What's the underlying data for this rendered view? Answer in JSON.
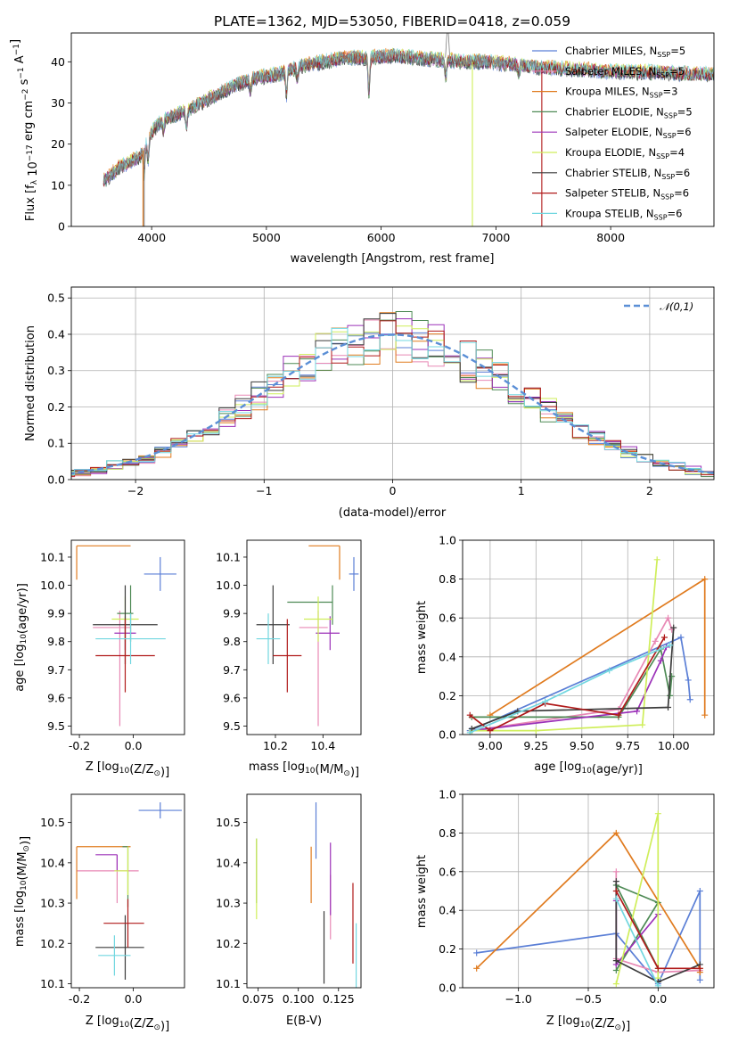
{
  "title": "PLATE=1362, MJD=53050, FIBERID=0418, z=0.059",
  "series": [
    {
      "name": "Chabrier MILES",
      "nssp": "5",
      "color": "#5b7fd6"
    },
    {
      "name": "Salpeter MILES",
      "nssp": "5",
      "color": "#e889b5"
    },
    {
      "name": "Kroupa MILES",
      "nssp": "3",
      "color": "#e07b1f"
    },
    {
      "name": "Chabrier ELODIE",
      "nssp": "5",
      "color": "#4e8a55"
    },
    {
      "name": "Salpeter ELODIE",
      "nssp": "6",
      "color": "#9b30b8"
    },
    {
      "name": "Kroupa ELODIE",
      "nssp": "4",
      "color": "#cfee5a"
    },
    {
      "name": "Chabrier STELIB",
      "nssp": "6",
      "color": "#3b3b3b"
    },
    {
      "name": "Salpeter STELIB",
      "nssp": "6",
      "color": "#b01a1a"
    },
    {
      "name": "Kroupa STELIB",
      "nssp": "6",
      "color": "#72d7e0"
    }
  ],
  "chart_data": [
    {
      "id": "spectrum",
      "type": "line",
      "xlabel": "wavelength [Angstrom, rest frame]",
      "ylabel": "Flux [f_λ 10^-17 erg cm^-2 s^-1 A^-1]",
      "xlim": [
        3300,
        8900
      ],
      "ylim": [
        0,
        47
      ],
      "xticks": [
        4000,
        5000,
        6000,
        7000,
        8000
      ],
      "yticks": [
        0,
        10,
        20,
        30,
        40
      ],
      "legend": "upper-right",
      "continuum": [
        [
          3580,
          11
        ],
        [
          3700,
          14
        ],
        [
          3900,
          17
        ],
        [
          4000,
          23
        ],
        [
          4100,
          26
        ],
        [
          4300,
          28
        ],
        [
          4500,
          31
        ],
        [
          4700,
          34
        ],
        [
          4900,
          36
        ],
        [
          5100,
          37
        ],
        [
          5300,
          39
        ],
        [
          5500,
          40
        ],
        [
          5700,
          41
        ],
        [
          5900,
          41
        ],
        [
          6100,
          41.5
        ],
        [
          6300,
          41
        ],
        [
          6500,
          40.5
        ],
        [
          6700,
          40
        ],
        [
          6900,
          40
        ],
        [
          7100,
          39.5
        ],
        [
          7300,
          39
        ],
        [
          7400,
          38.5
        ]
      ],
      "models_xrange": [
        3580,
        8900
      ],
      "data_xrange": [
        3580,
        7400
      ],
      "models_continue_to": [
        [
          7500,
          38.5
        ],
        [
          7800,
          38
        ],
        [
          8100,
          37.5
        ],
        [
          8400,
          37.5
        ],
        [
          8700,
          37
        ],
        [
          8900,
          37
        ]
      ]
    },
    {
      "id": "residuals",
      "type": "histogram",
      "xlabel": "(data-model)/error",
      "ylabel": "Normed distribution",
      "xlim": [
        -2.5,
        2.5
      ],
      "ylim": [
        0,
        0.53
      ],
      "xticks": [
        -2,
        -1,
        0,
        1,
        2
      ],
      "yticks": [
        0.0,
        0.1,
        0.2,
        0.3,
        0.4,
        0.5
      ],
      "reference_curve": "𝒩(0,1)",
      "legend": "upper-right",
      "grid": true
    },
    {
      "id": "age-vs-Z",
      "type": "errorbar",
      "xlabel": "Z [log10(Z/Z⊙)]",
      "ylabel": "age  [log10(age/yr)]",
      "xlim": [
        -0.23,
        0.19
      ],
      "ylim": [
        9.47,
        10.16
      ],
      "xticks": [
        -0.2,
        0.0
      ],
      "yticks": [
        9.5,
        9.6,
        9.7,
        9.8,
        9.9,
        10.0,
        10.1
      ],
      "points": [
        {
          "x": 0.1,
          "y": 10.04,
          "xerr": [
            0.06,
            0.06
          ],
          "yerr": [
            0.06,
            0.06
          ]
        },
        {
          "x": -0.05,
          "y": 9.85,
          "xerr": [
            0.1,
            0.04
          ],
          "yerr": [
            0.35,
            0.06
          ]
        },
        {
          "x": -0.21,
          "y": 10.14,
          "xerr": [
            0.0,
            0.2
          ],
          "yerr": [
            0.12,
            0.0
          ]
        },
        {
          "x": -0.01,
          "y": 9.9,
          "xerr": [
            0.05,
            0.01
          ],
          "yerr": [
            0.1,
            0.1
          ]
        },
        {
          "x": -0.03,
          "y": 9.83,
          "xerr": [
            0.04,
            0.04
          ],
          "yerr": [
            0.06,
            0.06
          ]
        },
        {
          "x": -0.03,
          "y": 9.88,
          "xerr": [
            0.05,
            0.05
          ],
          "yerr": [
            0.08,
            0.08
          ]
        },
        {
          "x": -0.03,
          "y": 9.86,
          "xerr": [
            0.12,
            0.12
          ],
          "yerr": [
            0.14,
            0.14
          ]
        },
        {
          "x": -0.03,
          "y": 9.75,
          "xerr": [
            0.11,
            0.11
          ],
          "yerr": [
            0.13,
            0.13
          ]
        },
        {
          "x": -0.01,
          "y": 9.81,
          "xerr": [
            0.13,
            0.13
          ],
          "yerr": [
            0.09,
            0.09
          ]
        }
      ]
    },
    {
      "id": "age-vs-mass",
      "type": "errorbar",
      "xlabel": "mass [log10(M/M⊙)]",
      "ylabel": "",
      "xlim": [
        10.08,
        10.56
      ],
      "ylim": [
        9.47,
        10.16
      ],
      "xticks": [
        10.2,
        10.4
      ],
      "yticks": [
        9.5,
        9.6,
        9.7,
        9.8,
        9.9,
        10.0,
        10.1
      ],
      "points": [
        {
          "x": 10.53,
          "y": 10.04,
          "xerr": [
            0.02,
            0.02
          ],
          "yerr": [
            0.06,
            0.06
          ]
        },
        {
          "x": 10.38,
          "y": 9.85,
          "xerr": [
            0.08,
            0.04
          ],
          "yerr": [
            0.35,
            0.06
          ]
        },
        {
          "x": 10.47,
          "y": 10.14,
          "xerr": [
            0.13,
            0.0
          ],
          "yerr": [
            0.12,
            0.0
          ]
        },
        {
          "x": 10.44,
          "y": 9.94,
          "xerr": [
            0.19,
            0.0
          ],
          "yerr": [
            0.08,
            0.06
          ]
        },
        {
          "x": 10.43,
          "y": 9.83,
          "xerr": [
            0.06,
            0.04
          ],
          "yerr": [
            0.06,
            0.06
          ]
        },
        {
          "x": 10.38,
          "y": 9.88,
          "xerr": [
            0.06,
            0.06
          ],
          "yerr": [
            0.08,
            0.08
          ]
        },
        {
          "x": 10.19,
          "y": 9.86,
          "xerr": [
            0.07,
            0.07
          ],
          "yerr": [
            0.14,
            0.14
          ]
        },
        {
          "x": 10.25,
          "y": 9.75,
          "xerr": [
            0.06,
            0.06
          ],
          "yerr": [
            0.13,
            0.13
          ]
        },
        {
          "x": 10.17,
          "y": 9.81,
          "xerr": [
            0.05,
            0.05
          ],
          "yerr": [
            0.09,
            0.09
          ]
        }
      ]
    },
    {
      "id": "mass-weight-vs-age",
      "type": "line",
      "xlabel": "age  [log10(age/yr)]",
      "ylabel": "mass weight",
      "xlim": [
        8.85,
        10.22
      ],
      "ylim": [
        0,
        1
      ],
      "xticks": [
        9.0,
        9.25,
        9.5,
        9.75,
        10.0
      ],
      "yticks": [
        0.0,
        0.2,
        0.4,
        0.6,
        0.8,
        1.0
      ],
      "grid": true,
      "lines": [
        {
          "x": [
            8.89,
            10.04,
            10.08,
            10.09
          ],
          "y": [
            0.02,
            0.5,
            0.28,
            0.18
          ]
        },
        {
          "x": [
            8.9,
            9.7,
            9.9,
            9.97,
            9.99
          ],
          "y": [
            0.02,
            0.13,
            0.48,
            0.6,
            0.54
          ]
        },
        {
          "x": [
            9.0,
            10.17,
            10.17
          ],
          "y": [
            0.1,
            0.8,
            0.1
          ]
        },
        {
          "x": [
            8.9,
            9.7,
            9.93,
            9.98,
            9.99
          ],
          "y": [
            0.09,
            0.09,
            0.44,
            0.2,
            0.3
          ]
        },
        {
          "x": [
            8.9,
            9.8,
            9.93,
            9.96
          ],
          "y": [
            0.02,
            0.12,
            0.38,
            0.45
          ]
        },
        {
          "x": [
            8.9,
            9.25,
            9.83,
            9.91
          ],
          "y": [
            0.02,
            0.02,
            0.05,
            0.9
          ]
        },
        {
          "x": [
            8.9,
            9.15,
            9.97,
            10.0
          ],
          "y": [
            0.03,
            0.12,
            0.14,
            0.55
          ]
        },
        {
          "x": [
            8.89,
            9.0,
            9.3,
            9.7,
            9.95
          ],
          "y": [
            0.1,
            0.02,
            0.16,
            0.1,
            0.5
          ]
        },
        {
          "x": [
            8.89,
            9.3,
            9.65,
            9.98
          ],
          "y": [
            0.01,
            0.17,
            0.33,
            0.46
          ]
        }
      ]
    },
    {
      "id": "mass-vs-Z",
      "type": "errorbar",
      "xlabel": "Z [log10(Z/Z⊙)]",
      "ylabel": "mass [log10(M/M⊙)]",
      "xlim": [
        -0.23,
        0.19
      ],
      "ylim": [
        10.09,
        10.57
      ],
      "xticks": [
        -0.2,
        0.0
      ],
      "yticks": [
        10.1,
        10.2,
        10.3,
        10.4,
        10.5
      ],
      "points": [
        {
          "x": 0.1,
          "y": 10.53,
          "xerr": [
            0.08,
            0.08
          ],
          "yerr": [
            0.02,
            0.02
          ]
        },
        {
          "x": -0.06,
          "y": 10.38,
          "xerr": [
            0.15,
            0.08
          ],
          "yerr": [
            0.08,
            0.04
          ]
        },
        {
          "x": -0.21,
          "y": 10.44,
          "xerr": [
            0.0,
            0.2
          ],
          "yerr": [
            0.13,
            0.0
          ]
        },
        {
          "x": -0.02,
          "y": 10.44,
          "xerr": [
            0.02,
            0.0
          ],
          "yerr": [
            0.15,
            0.0
          ]
        },
        {
          "x": -0.06,
          "y": 10.42,
          "xerr": [
            0.08,
            0.0
          ],
          "yerr": [
            0.04,
            0.0
          ]
        },
        {
          "x": -0.02,
          "y": 10.38,
          "xerr": [
            0.05,
            0.0
          ],
          "yerr": [
            0.06,
            0.06
          ]
        },
        {
          "x": -0.03,
          "y": 10.19,
          "xerr": [
            0.11,
            0.07
          ],
          "yerr": [
            0.08,
            0.08
          ]
        },
        {
          "x": -0.02,
          "y": 10.25,
          "xerr": [
            0.09,
            0.06
          ],
          "yerr": [
            0.06,
            0.06
          ]
        },
        {
          "x": -0.07,
          "y": 10.17,
          "xerr": [
            0.06,
            0.06
          ],
          "yerr": [
            0.05,
            0.05
          ]
        }
      ]
    },
    {
      "id": "mass-vs-ebv",
      "type": "errorbar",
      "xlabel": "E(B-V)",
      "ylabel": "",
      "xlim": [
        0.068,
        0.139
      ],
      "ylim": [
        10.09,
        10.57
      ],
      "xticks": [
        0.075,
        0.1,
        0.125
      ],
      "yticks": [
        10.1,
        10.2,
        10.3,
        10.4,
        10.5
      ],
      "points": [
        {
          "x": 0.111,
          "y": 10.48,
          "yerr": [
            0.07,
            0.07
          ]
        },
        {
          "x": 0.12,
          "y": 10.29,
          "yerr": [
            0.08,
            0.08
          ]
        },
        {
          "x": 0.108,
          "y": 10.37,
          "yerr": [
            0.07,
            0.07
          ]
        },
        {
          "x": 0.074,
          "y": 10.38,
          "yerr": [
            0.08,
            0.08
          ]
        },
        {
          "x": 0.12,
          "y": 10.36,
          "yerr": [
            0.09,
            0.09
          ]
        },
        {
          "x": 0.074,
          "y": 10.38,
          "yerr": [
            0.12,
            0.08
          ]
        },
        {
          "x": 0.116,
          "y": 10.19,
          "yerr": [
            0.09,
            0.09
          ]
        },
        {
          "x": 0.134,
          "y": 10.25,
          "yerr": [
            0.1,
            0.1
          ]
        },
        {
          "x": 0.136,
          "y": 10.17,
          "yerr": [
            0.08,
            0.08
          ]
        }
      ]
    },
    {
      "id": "mass-weight-vs-Z",
      "type": "line",
      "xlabel": "Z [log10(Z/Z⊙)]",
      "ylabel": "mass weight",
      "xlim": [
        -1.4,
        0.4
      ],
      "ylim": [
        0,
        1
      ],
      "xticks": [
        -1.0,
        -0.5,
        0.0
      ],
      "yticks": [
        0.0,
        0.2,
        0.4,
        0.6,
        0.8,
        1.0
      ],
      "grid": true,
      "lines": [
        {
          "x": [
            -1.3,
            -0.3,
            0.0,
            0.3,
            0.3
          ],
          "y": [
            0.18,
            0.28,
            0.02,
            0.5,
            0.04
          ]
        },
        {
          "x": [
            -0.3,
            -0.3,
            0.0,
            0.3
          ],
          "y": [
            0.6,
            0.15,
            0.08,
            0.09
          ]
        },
        {
          "x": [
            -1.3,
            -0.3,
            0.3,
            0.3
          ],
          "y": [
            0.1,
            0.8,
            0.1,
            0.08
          ]
        },
        {
          "x": [
            -0.3,
            0.0,
            -0.3,
            0.0
          ],
          "y": [
            0.09,
            0.44,
            0.53,
            0.1
          ]
        },
        {
          "x": [
            -0.3,
            -0.3,
            0.0
          ],
          "y": [
            0.45,
            0.12,
            0.38
          ]
        },
        {
          "x": [
            -0.3,
            0.0,
            0.0
          ],
          "y": [
            0.02,
            0.9,
            0.05
          ]
        },
        {
          "x": [
            -0.3,
            -0.3,
            0.0,
            0.3
          ],
          "y": [
            0.55,
            0.14,
            0.03,
            0.12
          ]
        },
        {
          "x": [
            -0.3,
            0.0,
            0.3
          ],
          "y": [
            0.5,
            0.1,
            0.1
          ]
        },
        {
          "x": [
            -0.3,
            0.0
          ],
          "y": [
            0.46,
            0.01
          ]
        }
      ]
    }
  ]
}
